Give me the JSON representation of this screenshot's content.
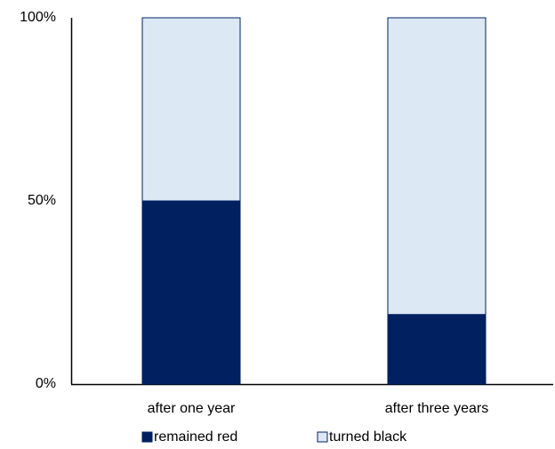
{
  "chart_data": {
    "type": "stacked_bar",
    "categories": [
      "after one year",
      "after three years"
    ],
    "series": [
      {
        "name": "remained red",
        "color": "#002060",
        "values": [
          50,
          19
        ]
      },
      {
        "name": "turned black",
        "color": "#dde8f5",
        "values": [
          50,
          81
        ]
      }
    ],
    "ylim": [
      0,
      100
    ],
    "yticks": [
      {
        "value": 0,
        "label": "0%"
      },
      {
        "value": 50,
        "label": "50%"
      },
      {
        "value": 100,
        "label": "100%"
      }
    ],
    "grid": false,
    "legend": "bottom"
  }
}
